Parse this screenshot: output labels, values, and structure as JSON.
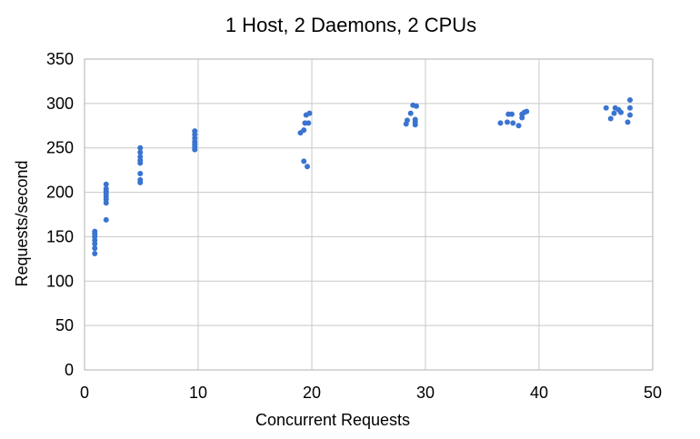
{
  "chart_data": {
    "type": "scatter",
    "title": "1 Host, 2 Daemons, 2 CPUs",
    "xlabel": "Concurrent Requests",
    "ylabel": "Requests/second",
    "xlim": [
      0,
      50
    ],
    "ylim": [
      0,
      350
    ],
    "xticks": [
      0,
      10,
      20,
      30,
      40,
      50
    ],
    "yticks": [
      0,
      50,
      100,
      150,
      200,
      250,
      300,
      350
    ],
    "grid": true,
    "legend": "none",
    "color": "#3a74d0",
    "points": [
      {
        "x": 0.9,
        "y": 131
      },
      {
        "x": 0.9,
        "y": 137
      },
      {
        "x": 0.9,
        "y": 142
      },
      {
        "x": 0.9,
        "y": 146
      },
      {
        "x": 0.9,
        "y": 150
      },
      {
        "x": 0.9,
        "y": 153
      },
      {
        "x": 0.9,
        "y": 156
      },
      {
        "x": 1.9,
        "y": 169
      },
      {
        "x": 1.9,
        "y": 188
      },
      {
        "x": 1.9,
        "y": 192
      },
      {
        "x": 1.9,
        "y": 195
      },
      {
        "x": 1.9,
        "y": 198
      },
      {
        "x": 1.9,
        "y": 201
      },
      {
        "x": 1.9,
        "y": 204
      },
      {
        "x": 1.9,
        "y": 209
      },
      {
        "x": 4.9,
        "y": 211
      },
      {
        "x": 4.9,
        "y": 214
      },
      {
        "x": 4.9,
        "y": 221
      },
      {
        "x": 4.9,
        "y": 233
      },
      {
        "x": 4.9,
        "y": 236
      },
      {
        "x": 4.9,
        "y": 240
      },
      {
        "x": 4.9,
        "y": 245
      },
      {
        "x": 4.9,
        "y": 250
      },
      {
        "x": 9.7,
        "y": 248
      },
      {
        "x": 9.7,
        "y": 251
      },
      {
        "x": 9.7,
        "y": 254
      },
      {
        "x": 9.7,
        "y": 257
      },
      {
        "x": 9.7,
        "y": 261
      },
      {
        "x": 9.7,
        "y": 265
      },
      {
        "x": 9.7,
        "y": 269
      },
      {
        "x": 19.0,
        "y": 267
      },
      {
        "x": 19.3,
        "y": 270
      },
      {
        "x": 19.3,
        "y": 235
      },
      {
        "x": 19.6,
        "y": 229
      },
      {
        "x": 19.4,
        "y": 278
      },
      {
        "x": 19.7,
        "y": 278
      },
      {
        "x": 19.5,
        "y": 287
      },
      {
        "x": 19.8,
        "y": 289
      },
      {
        "x": 28.3,
        "y": 277
      },
      {
        "x": 28.4,
        "y": 281
      },
      {
        "x": 28.7,
        "y": 289
      },
      {
        "x": 28.9,
        "y": 298
      },
      {
        "x": 29.2,
        "y": 297
      },
      {
        "x": 29.1,
        "y": 282
      },
      {
        "x": 29.1,
        "y": 279
      },
      {
        "x": 29.1,
        "y": 276
      },
      {
        "x": 36.6,
        "y": 278
      },
      {
        "x": 37.2,
        "y": 279
      },
      {
        "x": 37.3,
        "y": 288
      },
      {
        "x": 37.6,
        "y": 288
      },
      {
        "x": 37.7,
        "y": 278
      },
      {
        "x": 38.2,
        "y": 275
      },
      {
        "x": 38.5,
        "y": 284
      },
      {
        "x": 38.5,
        "y": 288
      },
      {
        "x": 38.9,
        "y": 291
      },
      {
        "x": 38.7,
        "y": 290
      },
      {
        "x": 45.9,
        "y": 295
      },
      {
        "x": 46.3,
        "y": 283
      },
      {
        "x": 46.6,
        "y": 289
      },
      {
        "x": 46.7,
        "y": 295
      },
      {
        "x": 47.0,
        "y": 293
      },
      {
        "x": 47.2,
        "y": 290
      },
      {
        "x": 47.8,
        "y": 279
      },
      {
        "x": 48.0,
        "y": 287
      },
      {
        "x": 48.0,
        "y": 295
      },
      {
        "x": 48.0,
        "y": 304
      }
    ]
  }
}
